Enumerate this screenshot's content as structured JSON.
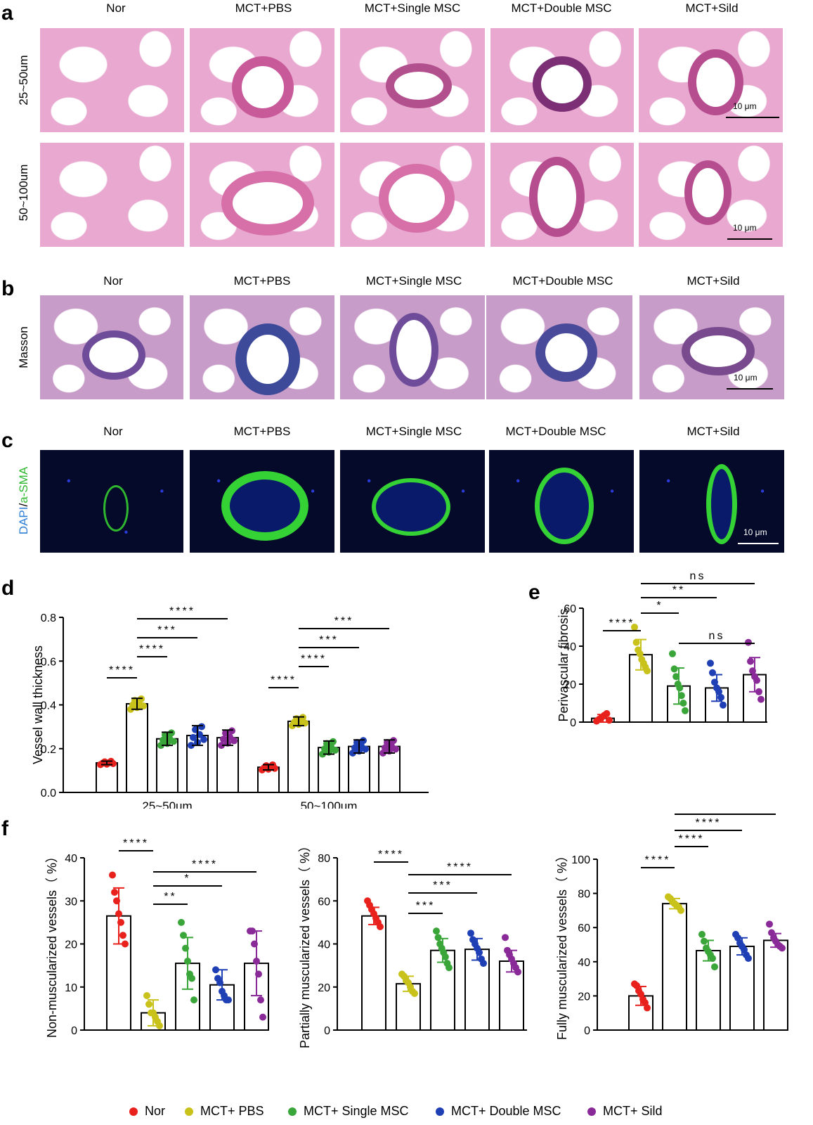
{
  "panels": {
    "a": "a",
    "b": "b",
    "c": "c",
    "d": "d",
    "e": "e",
    "f": "f"
  },
  "groups": [
    "Nor",
    "MCT+PBS",
    "MCT+Single MSC",
    "MCT+Double MSC",
    "MCT+Sild"
  ],
  "row_labels": {
    "a_row1": "25~50um",
    "a_row2": "50~100um",
    "b_row": "Masson",
    "c_row_dapi": "DAPI",
    "c_row_sep": "/",
    "c_row_sma": "a-SMA"
  },
  "scale_bar": "10 μm",
  "colors": {
    "nor": "#e8211d",
    "pbs": "#c9c21a",
    "single": "#3aa63a",
    "double": "#1f3fb5",
    "sild": "#8a2a98",
    "dapi": "#2f7fd6",
    "sma": "#2fb82f"
  },
  "legend": [
    {
      "label": "Nor",
      "color": "#e8211d"
    },
    {
      "label": "MCT+ PBS",
      "color": "#c9c21a"
    },
    {
      "label": "MCT+ Single MSC",
      "color": "#3aa63a"
    },
    {
      "label": "MCT+ Double MSC",
      "color": "#1f3fb5"
    },
    {
      "label": "MCT+ Sild",
      "color": "#8a2a98"
    }
  ],
  "chart_data": [
    {
      "id": "d",
      "type": "bar",
      "ylabel": "Vessel wall thickness",
      "ylim": [
        0,
        0.8
      ],
      "yticks": [
        "0.0",
        "0.2",
        "0.4",
        "0.6",
        "0.8"
      ],
      "categories": [
        "25~50um",
        "50~100um"
      ],
      "series": [
        {
          "color": "#e8211d",
          "values": [
            0.135,
            0.115
          ],
          "sd": [
            0.008,
            0.012
          ]
        },
        {
          "color": "#c9c21a",
          "values": [
            0.405,
            0.325
          ],
          "sd": [
            0.025,
            0.02
          ]
        },
        {
          "color": "#3aa63a",
          "values": [
            0.245,
            0.205
          ],
          "sd": [
            0.03,
            0.03
          ]
        },
        {
          "color": "#1f3fb5",
          "values": [
            0.26,
            0.21
          ],
          "sd": [
            0.045,
            0.03
          ]
        },
        {
          "color": "#8a2a98",
          "values": [
            0.25,
            0.21
          ],
          "sd": [
            0.035,
            0.03
          ]
        }
      ],
      "significance": [
        {
          "cat": 0,
          "from": 0,
          "to": 1,
          "label": "****"
        },
        {
          "cat": 0,
          "from": 1,
          "to": 2,
          "label": "****"
        },
        {
          "cat": 0,
          "from": 1,
          "to": 3,
          "label": "***"
        },
        {
          "cat": 0,
          "from": 1,
          "to": 4,
          "label": "****"
        },
        {
          "cat": 1,
          "from": 0,
          "to": 1,
          "label": "****"
        },
        {
          "cat": 1,
          "from": 1,
          "to": 2,
          "label": "****"
        },
        {
          "cat": 1,
          "from": 1,
          "to": 3,
          "label": "***"
        },
        {
          "cat": 1,
          "from": 1,
          "to": 4,
          "label": "***"
        }
      ]
    },
    {
      "id": "e",
      "type": "bar",
      "ylabel": "Perivascular fibrosis",
      "ylim": [
        0,
        60
      ],
      "yticks": [
        "0",
        "20",
        "40",
        "60"
      ],
      "series": [
        {
          "color": "#e8211d",
          "value": 2,
          "sd": 2,
          "points": [
            0.5,
            1.5,
            2.5,
            3.5,
            4.5,
            1
          ]
        },
        {
          "color": "#c9c21a",
          "value": 35.5,
          "sd": 8,
          "points": [
            50,
            42,
            38,
            36,
            33,
            31,
            29,
            27
          ]
        },
        {
          "color": "#3aa63a",
          "value": 19,
          "sd": 9.5,
          "points": [
            36,
            28,
            24,
            20,
            18,
            14,
            10,
            6
          ]
        },
        {
          "color": "#1f3fb5",
          "value": 18,
          "sd": 7,
          "points": [
            31,
            26,
            21,
            18,
            16,
            13,
            9
          ]
        },
        {
          "color": "#8a2a98",
          "value": 25,
          "sd": 9,
          "points": [
            42,
            32,
            27,
            24,
            22,
            16,
            12
          ]
        }
      ],
      "significance": [
        {
          "from": 0,
          "to": 1,
          "label": "****"
        },
        {
          "from": 1,
          "to": 2,
          "label": "*"
        },
        {
          "from": 1,
          "to": 3,
          "label": "**"
        },
        {
          "from": 1,
          "to": 4,
          "label": "ns"
        },
        {
          "from": 2,
          "to": 4,
          "label": "ns"
        }
      ]
    },
    {
      "id": "f1",
      "type": "bar",
      "ylabel": "Non-muscularized vessels（ %）",
      "ylim": [
        0,
        40
      ],
      "yticks": [
        "0",
        "10",
        "20",
        "30",
        "40"
      ],
      "series": [
        {
          "color": "#e8211d",
          "value": 26.5,
          "sd": 6.5,
          "points": [
            36,
            32,
            30,
            27,
            25,
            22,
            20
          ]
        },
        {
          "color": "#c9c21a",
          "value": 4,
          "sd": 3,
          "points": [
            8,
            6,
            4,
            4,
            3,
            2,
            1
          ]
        },
        {
          "color": "#3aa63a",
          "value": 15.5,
          "sd": 6,
          "points": [
            25,
            22,
            19,
            16,
            13,
            12,
            7
          ]
        },
        {
          "color": "#1f3fb5",
          "value": 10.5,
          "sd": 3.5,
          "points": [
            14,
            12,
            11,
            9,
            8,
            7,
            7
          ]
        },
        {
          "color": "#8a2a98",
          "value": 15.5,
          "sd": 7.5,
          "points": [
            23,
            23,
            20,
            16,
            13,
            7,
            3
          ]
        }
      ],
      "significance": [
        {
          "from": 0,
          "to": 1,
          "label": "****"
        },
        {
          "from": 1,
          "to": 2,
          "label": "**"
        },
        {
          "from": 1,
          "to": 3,
          "label": "*"
        },
        {
          "from": 1,
          "to": 4,
          "label": "****"
        }
      ]
    },
    {
      "id": "f2",
      "type": "bar",
      "ylabel": "Partially muscularized vessels（ %）",
      "ylim": [
        0,
        80
      ],
      "yticks": [
        "0",
        "20",
        "40",
        "60",
        "80"
      ],
      "series": [
        {
          "color": "#e8211d",
          "value": 53,
          "sd": 4,
          "points": [
            60,
            58,
            56,
            54,
            52,
            50,
            48
          ]
        },
        {
          "color": "#c9c21a",
          "value": 21.5,
          "sd": 3.5,
          "points": [
            26,
            25,
            23,
            22,
            20,
            18,
            17
          ]
        },
        {
          "color": "#3aa63a",
          "value": 37,
          "sd": 5.5,
          "points": [
            46,
            43,
            40,
            38,
            36,
            34,
            31,
            29
          ]
        },
        {
          "color": "#1f3fb5",
          "value": 37.5,
          "sd": 5,
          "points": [
            45,
            42,
            40,
            38,
            36,
            33,
            31
          ]
        },
        {
          "color": "#8a2a98",
          "value": 32,
          "sd": 5,
          "points": [
            43,
            37,
            35,
            33,
            31,
            29,
            27
          ]
        }
      ],
      "significance": [
        {
          "from": 0,
          "to": 1,
          "label": "****"
        },
        {
          "from": 1,
          "to": 2,
          "label": "***"
        },
        {
          "from": 1,
          "to": 3,
          "label": "***"
        },
        {
          "from": 1,
          "to": 4,
          "label": "****"
        }
      ]
    },
    {
      "id": "f3",
      "type": "bar",
      "ylabel": "Fully muscularized vessels（ %）",
      "ylim": [
        0,
        100
      ],
      "yticks": [
        "0",
        "20",
        "40",
        "60",
        "80",
        "100"
      ],
      "series": [
        {
          "color": "#e8211d",
          "value": 20,
          "sd": 5.5,
          "points": [
            27,
            26,
            23,
            21,
            18,
            16,
            13
          ]
        },
        {
          "color": "#c9c21a",
          "value": 74,
          "sd": 3,
          "points": [
            78,
            77,
            75,
            74,
            73,
            72,
            70
          ]
        },
        {
          "color": "#3aa63a",
          "value": 46.5,
          "sd": 6,
          "points": [
            56,
            52,
            48,
            46,
            44,
            42,
            37
          ]
        },
        {
          "color": "#1f3fb5",
          "value": 49,
          "sd": 5,
          "points": [
            56,
            54,
            51,
            49,
            47,
            44,
            42
          ]
        },
        {
          "color": "#8a2a98",
          "value": 52.5,
          "sd": 4,
          "points": [
            62,
            57,
            54,
            52,
            50,
            49,
            48
          ]
        }
      ],
      "significance": [
        {
          "from": 0,
          "to": 1,
          "label": "****"
        },
        {
          "from": 1,
          "to": 2,
          "label": "****"
        },
        {
          "from": 1,
          "to": 3,
          "label": "****"
        },
        {
          "from": 1,
          "to": 4,
          "label": "****"
        }
      ]
    }
  ]
}
